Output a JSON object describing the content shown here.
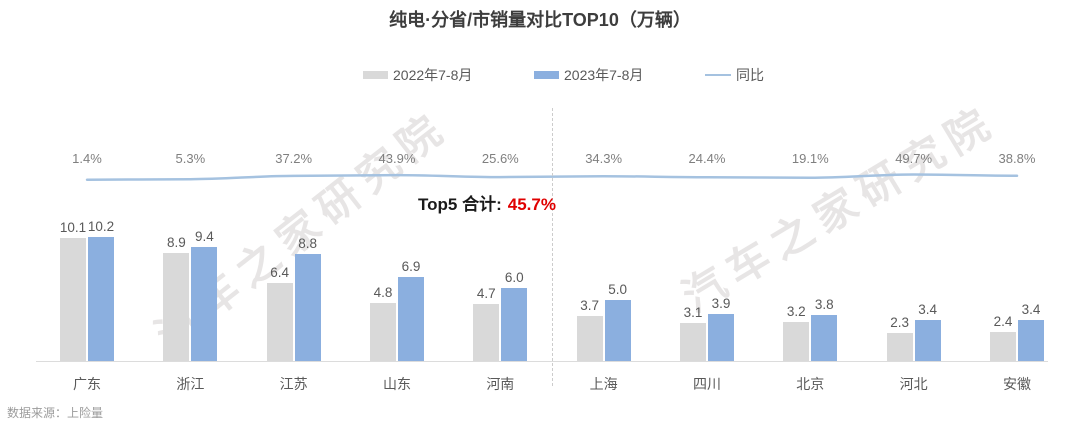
{
  "title": "纯电·分省/市销量对比TOP10（万辆）",
  "legend": {
    "bar_2022_label": "2022年7-8月",
    "bar_2023_label": "2023年7-8月",
    "yoy_label": "同比"
  },
  "annotation": {
    "label": "Top5 合计:",
    "value": "45.7%",
    "value_color": "#e00000"
  },
  "watermark_text": "汽车之家研究院",
  "source_text": "数据来源：上险量",
  "colors": {
    "bar_2022": "#d9d9d9",
    "bar_2023": "#8bafdf",
    "trend_line": "#a5c2e0",
    "annotation_red": "#e00000",
    "axis": "#dcdcdc"
  },
  "chart_data": {
    "type": "bar",
    "title": "纯电·分省/市销量对比TOP10（万辆）",
    "categories": [
      "广东",
      "浙江",
      "江苏",
      "山东",
      "河南",
      "上海",
      "四川",
      "北京",
      "河北",
      "安徽"
    ],
    "series": [
      {
        "name": "2022年7-8月",
        "type": "bar",
        "color": "#d9d9d9",
        "values": [
          10.1,
          8.9,
          6.4,
          4.8,
          4.7,
          3.7,
          3.1,
          3.2,
          2.3,
          2.4
        ]
      },
      {
        "name": "2023年7-8月",
        "type": "bar",
        "color": "#8bafdf",
        "values": [
          10.2,
          9.4,
          8.8,
          6.9,
          6.0,
          5.0,
          3.9,
          3.8,
          3.4,
          3.4
        ]
      },
      {
        "name": "同比",
        "type": "line",
        "color": "#a5c2e0",
        "unit": "%",
        "values": [
          1.4,
          5.3,
          37.2,
          43.9,
          25.6,
          34.3,
          24.4,
          19.1,
          49.7,
          38.8
        ]
      }
    ],
    "annotations": [
      {
        "text": "Top5 合计:",
        "value": "45.7%"
      }
    ],
    "divider_after_category": "河南",
    "legend_position": "top",
    "ylim": [
      0,
      10.5
    ],
    "grid": false,
    "ylabel": "",
    "xlabel": ""
  }
}
